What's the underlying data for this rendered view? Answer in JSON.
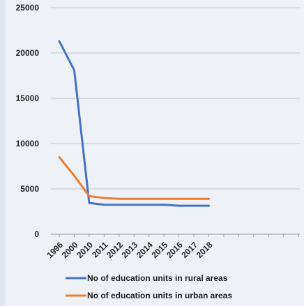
{
  "chart_data": {
    "type": "line",
    "categories": [
      "1996",
      "2000",
      "2010",
      "2011",
      "2012",
      "2013",
      "2014",
      "2015",
      "2016",
      "2017",
      "2018"
    ],
    "series": [
      {
        "name": "No of education units in rural areas",
        "color": "#4472c4",
        "values": [
          21300,
          18100,
          3450,
          3250,
          3250,
          3250,
          3250,
          3250,
          3150,
          3150,
          3150
        ]
      },
      {
        "name": "No of education units in urban areas",
        "color": "#ed7d31",
        "values": [
          8500,
          6450,
          4200,
          4000,
          3900,
          3900,
          3900,
          3900,
          3900,
          3900,
          3900
        ]
      }
    ],
    "yticks": [
      "0",
      "5000",
      "10000",
      "15000",
      "20000",
      "25000"
    ],
    "ylim": [
      0,
      25000
    ],
    "grid": true,
    "legend": "bottom"
  }
}
